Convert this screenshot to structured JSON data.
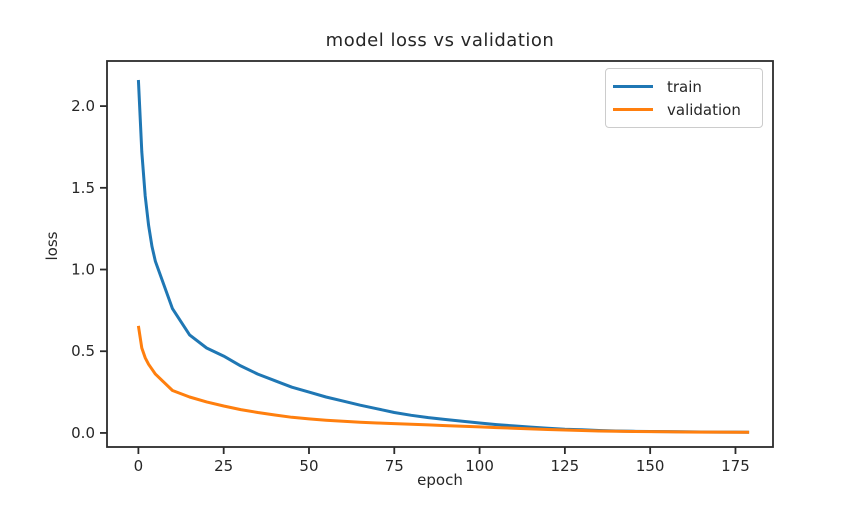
{
  "figure": {
    "background": "#ffffff",
    "axis_color": "#2b2b2b",
    "text_color": "#262626",
    "legend_border_color": "#cccccc"
  },
  "chart_data": {
    "type": "line",
    "title": "model loss vs validation",
    "xlabel": "epoch",
    "ylabel": "loss",
    "grid": false,
    "legend_position": "upper right",
    "xlim": [
      -9.2,
      186.0
    ],
    "ylim": [
      -0.086,
      2.276
    ],
    "x_ticks": [
      0,
      25,
      50,
      75,
      100,
      125,
      150,
      175
    ],
    "y_ticks": [
      0.0,
      0.5,
      1.0,
      1.5,
      2.0
    ],
    "x": [
      0,
      1,
      2,
      3,
      4,
      5,
      10,
      15,
      20,
      25,
      30,
      35,
      40,
      45,
      50,
      55,
      60,
      65,
      70,
      75,
      80,
      85,
      90,
      95,
      100,
      105,
      110,
      115,
      120,
      125,
      130,
      135,
      140,
      145,
      150,
      155,
      160,
      165,
      170,
      175,
      179
    ],
    "series": [
      {
        "name": "train",
        "color": "#1f77b4",
        "values": [
          2.16,
          1.72,
          1.45,
          1.27,
          1.14,
          1.05,
          0.76,
          0.6,
          0.52,
          0.47,
          0.41,
          0.36,
          0.32,
          0.28,
          0.25,
          0.22,
          0.195,
          0.17,
          0.148,
          0.125,
          0.108,
          0.094,
          0.082,
          0.071,
          0.061,
          0.051,
          0.043,
          0.036,
          0.029,
          0.023,
          0.019,
          0.015,
          0.012,
          0.01,
          0.009,
          0.008,
          0.007,
          0.006,
          0.005,
          0.005,
          0.004
        ]
      },
      {
        "name": "validation",
        "color": "#ff7f0e",
        "values": [
          0.655,
          0.52,
          0.46,
          0.42,
          0.39,
          0.36,
          0.26,
          0.22,
          0.19,
          0.165,
          0.143,
          0.125,
          0.11,
          0.096,
          0.086,
          0.078,
          0.072,
          0.066,
          0.061,
          0.057,
          0.053,
          0.049,
          0.045,
          0.041,
          0.037,
          0.033,
          0.029,
          0.025,
          0.021,
          0.018,
          0.015,
          0.012,
          0.01,
          0.009,
          0.008,
          0.007,
          0.006,
          0.005,
          0.005,
          0.004,
          0.004
        ]
      }
    ]
  }
}
